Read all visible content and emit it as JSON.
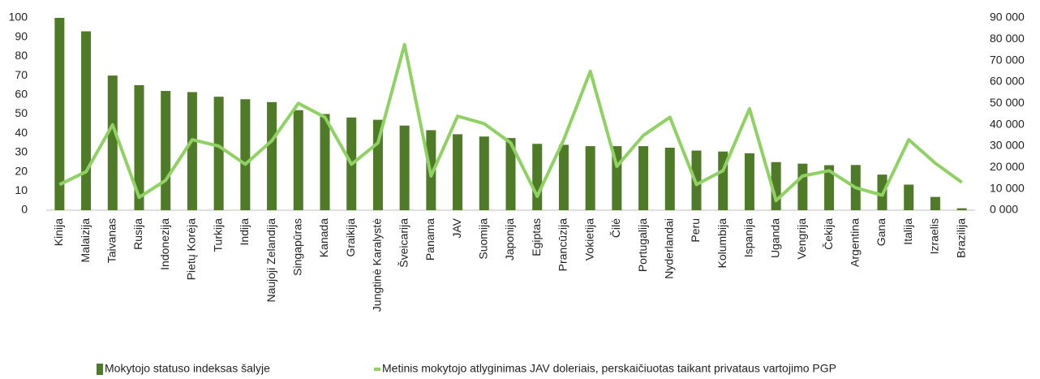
{
  "chart_data": {
    "type": "bar_line",
    "categories": [
      "Kinija",
      "Malaizija",
      "Taivanas",
      "Rusija",
      "Indonezija",
      "Pietų Korėja",
      "Turkija",
      "Indija",
      "Naujoji Zelandija",
      "Singapūras",
      "Kanada",
      "Graikija",
      "Jungtinė Karalystė",
      "Šveicarija",
      "Panama",
      "JAV",
      "Suomija",
      "Japonija",
      "Egiptas",
      "Prancūzija",
      "Vokietija",
      "Čilė",
      "Portugalija",
      "Nyderlandai",
      "Peru",
      "Kolumbija",
      "Ispanija",
      "Uganda",
      "Vengrija",
      "Čekija",
      "Argentina",
      "Gana",
      "Italija",
      "Izraelis",
      "Brazilija"
    ],
    "series": [
      {
        "name": "Mokytojo statuso indeksas šalyje",
        "type": "bar",
        "color": "#4f7a28",
        "values": [
          100,
          93,
          70,
          65,
          62,
          61.4,
          59,
          57.7,
          56.2,
          52,
          50,
          48.2,
          47,
          44,
          41.6,
          39.5,
          38.3,
          37.5,
          34.5,
          34,
          33.3,
          33.3,
          33.3,
          32.5,
          31,
          30.5,
          29.6,
          25,
          24.2,
          23.4,
          23.5,
          18.5,
          13.3,
          6.9,
          1
        ]
      },
      {
        "name": "Metinis mokytojo atlyginimas JAV doleriais, perskaičiuotas  taikant privataus vartojimo PGP",
        "type": "line",
        "axis": "y2",
        "color": "#8fd163",
        "values": [
          12000,
          18000,
          40000,
          6000,
          14000,
          33000,
          30000,
          21500,
          32500,
          50000,
          43500,
          21500,
          31500,
          77500,
          16000,
          44000,
          40500,
          31500,
          6500,
          33000,
          65000,
          20500,
          35000,
          43500,
          12000,
          18500,
          47500,
          4500,
          16000,
          18500,
          10500,
          7000,
          33000,
          22000,
          13000
        ]
      }
    ],
    "ylim": [
      0,
      100
    ],
    "yticks": [
      0,
      10,
      20,
      30,
      40,
      50,
      60,
      70,
      80,
      90,
      100
    ],
    "y2lim": [
      0,
      90000
    ],
    "y2ticks": [
      {
        "value": 0,
        "label": "0 000"
      },
      {
        "value": 10000,
        "label": "10 000"
      },
      {
        "value": 20000,
        "label": "20 000"
      },
      {
        "value": 30000,
        "label": "30 000"
      },
      {
        "value": 40000,
        "label": "40 000"
      },
      {
        "value": 50000,
        "label": "50 000"
      },
      {
        "value": 60000,
        "label": "60 000"
      },
      {
        "value": 70000,
        "label": "70 000"
      },
      {
        "value": 80000,
        "label": "80 000"
      },
      {
        "value": 90000,
        "label": "90 000"
      }
    ],
    "legend": "bottom"
  }
}
